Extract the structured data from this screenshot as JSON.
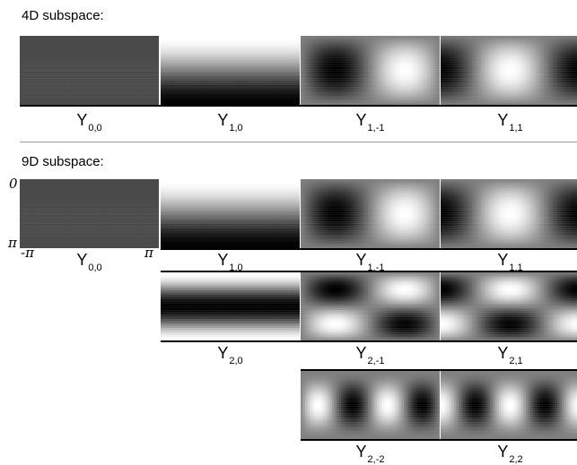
{
  "sections": {
    "four_d_title": "4D subspace:",
    "nine_d_title": "9D subspace:"
  },
  "axes": {
    "theta_top": "0",
    "theta_bottom": "π",
    "phi_left": "-π",
    "phi_right": "π"
  },
  "harmonics": {
    "y00": {
      "sym": "Y",
      "sub": "0,0",
      "l": 0,
      "m": 0
    },
    "y10": {
      "sym": "Y",
      "sub": "1,0",
      "l": 1,
      "m": 0
    },
    "y1m1": {
      "sym": "Y",
      "sub": "1,-1",
      "l": 1,
      "m": -1
    },
    "y11": {
      "sym": "Y",
      "sub": "1,1",
      "l": 1,
      "m": 1
    },
    "y20": {
      "sym": "Y",
      "sub": "2,0",
      "l": 2,
      "m": 0
    },
    "y2m1": {
      "sym": "Y",
      "sub": "2,-1",
      "l": 2,
      "m": -1
    },
    "y21": {
      "sym": "Y",
      "sub": "2,1",
      "l": 2,
      "m": 1
    },
    "y2m2": {
      "sym": "Y",
      "sub": "2,-2",
      "l": 2,
      "m": -2
    },
    "y22": {
      "sym": "Y",
      "sub": "2,2",
      "l": 2,
      "m": 2
    }
  },
  "colors": {
    "background": "#ffffff",
    "constant_tile": "#4a4a4a",
    "rule": "#000000",
    "separator": "#9a9a9a"
  }
}
